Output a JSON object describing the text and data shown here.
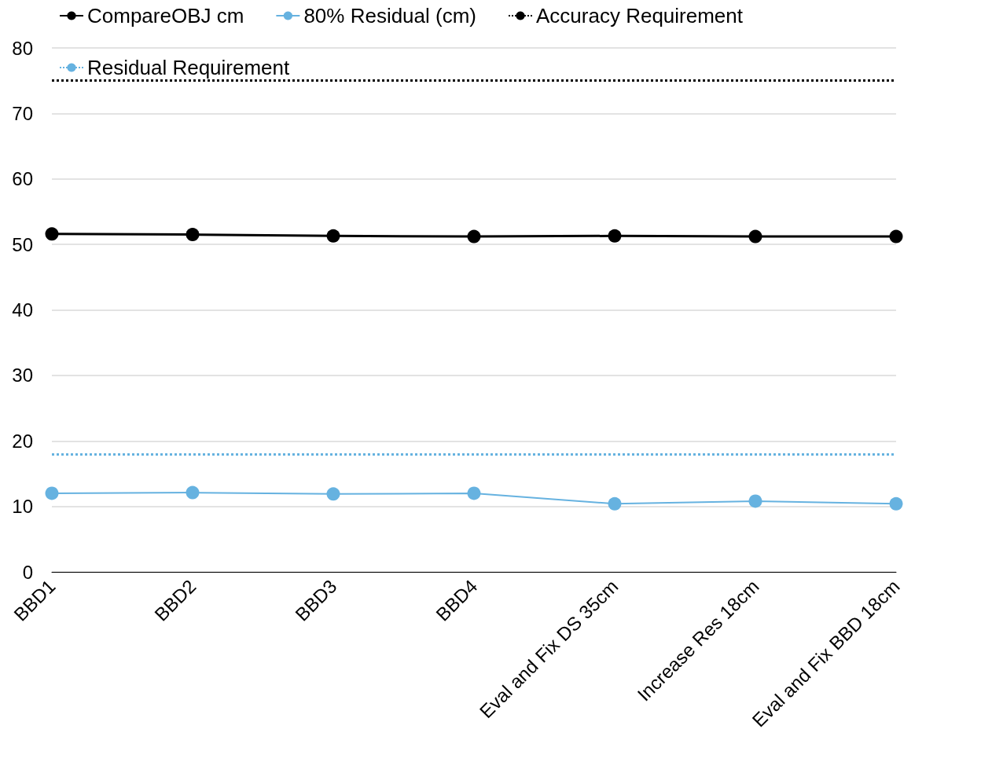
{
  "chart_data": {
    "type": "line",
    "categories": [
      "BBD1",
      "BBD2",
      "BBD3",
      "BBD4",
      "Eval and Fix DS 35cm",
      "Increase Res 18cm",
      "Eval and Fix BBD 18cm"
    ],
    "series": [
      {
        "name": "CompareOBJ cm",
        "color": "#000000",
        "values": [
          51.6,
          51.5,
          51.3,
          51.2,
          51.3,
          51.2,
          51.2
        ]
      },
      {
        "name": "80% Residual (cm)",
        "color": "#66b2e0",
        "values": [
          12.0,
          12.1,
          11.9,
          12.0,
          10.4,
          10.8,
          10.4
        ]
      }
    ],
    "ref_lines": [
      {
        "axis": "y",
        "value": 75,
        "label": "Accuracy Requirement",
        "color": "#000000",
        "line_style": "dotted"
      },
      {
        "axis": "y",
        "value": 18,
        "label": "Residual Requirement",
        "color": "#66b2e0",
        "line_style": "dotted"
      }
    ],
    "ylim": [
      0,
      80
    ],
    "yticks": [
      0,
      10,
      20,
      30,
      40,
      50,
      60,
      70,
      80
    ],
    "grid": "y",
    "legend": "top left",
    "marker": "circle",
    "line_style": "solid"
  }
}
